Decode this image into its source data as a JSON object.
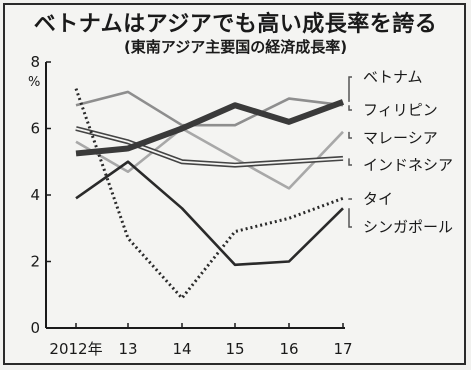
{
  "chart_data": {
    "type": "line",
    "title": "ベトナムはアジアでも高い成長率を誇る",
    "subtitle": "(東南アジア主要国の経済成長率)",
    "ylabel": "%",
    "xlabel": "",
    "x": [
      "2012年",
      "13",
      "14",
      "15",
      "16",
      "17"
    ],
    "ylim": [
      0,
      8
    ],
    "yticks": [
      0,
      2,
      4,
      6,
      8
    ],
    "grid": false,
    "legend": "right",
    "series": [
      {
        "name": "ベトナム",
        "values": [
          5.25,
          5.4,
          6.0,
          6.7,
          6.2,
          6.8
        ],
        "color": "#3a3a3a",
        "style": "thick"
      },
      {
        "name": "フィリピン",
        "values": [
          6.7,
          7.1,
          6.1,
          6.1,
          6.9,
          6.7
        ],
        "color": "#8e8e8e",
        "style": "solid"
      },
      {
        "name": "マレーシア",
        "values": [
          5.6,
          4.7,
          6.0,
          5.1,
          4.2,
          5.9
        ],
        "color": "#a8a8a8",
        "style": "solid"
      },
      {
        "name": "インドネシア",
        "values": [
          6.0,
          5.6,
          5.0,
          4.9,
          5.0,
          5.1
        ],
        "color": "#444444",
        "style": "double"
      },
      {
        "name": "タイ",
        "values": [
          7.2,
          2.7,
          0.9,
          2.9,
          3.3,
          3.9
        ],
        "color": "#2a2a2a",
        "style": "dotted"
      },
      {
        "name": "シンガポール",
        "values": [
          3.9,
          5.0,
          3.6,
          1.9,
          2.0,
          3.6
        ],
        "color": "#2a2a2a",
        "style": "solid"
      }
    ]
  }
}
